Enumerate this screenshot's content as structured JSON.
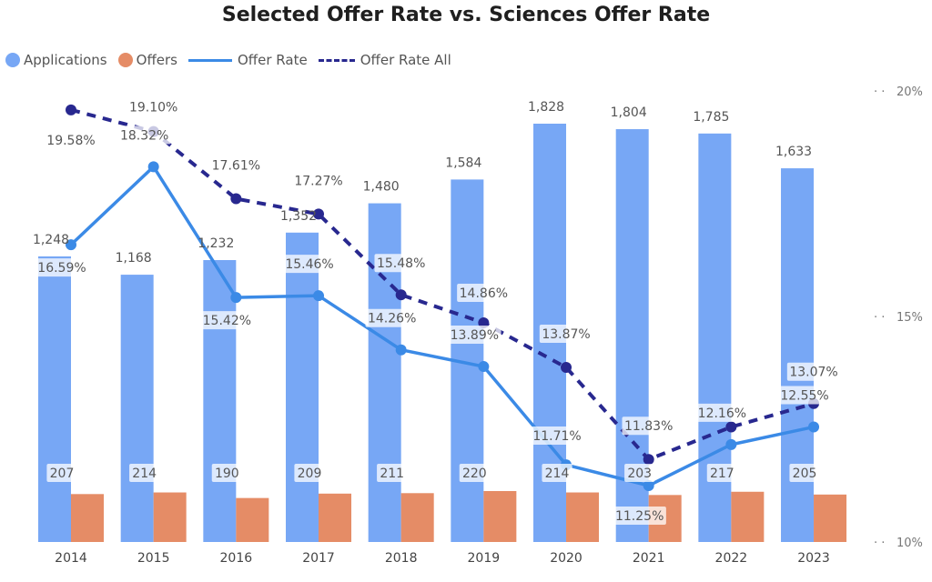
{
  "chart_data": {
    "type": "bar",
    "title": "Selected Offer Rate vs. Sciences Offer Rate",
    "categories": [
      "2014",
      "2015",
      "2016",
      "2017",
      "2018",
      "2019",
      "2020",
      "2021",
      "2022",
      "2023"
    ],
    "series": [
      {
        "name": "Applications",
        "kind": "bar",
        "color": "#77a7f5",
        "values": [
          1248,
          1168,
          1232,
          1352,
          1480,
          1584,
          1828,
          1804,
          1785,
          1633
        ],
        "labels": [
          "1,248",
          "1,168",
          "1,232",
          "1,352",
          "1,480",
          "1,584",
          "1,828",
          "1,804",
          "1,785",
          "1,633"
        ]
      },
      {
        "name": "Offers",
        "kind": "bar",
        "color": "#e58c66",
        "values": [
          207,
          214,
          190,
          209,
          211,
          220,
          214,
          203,
          217,
          205
        ],
        "labels": [
          "207",
          "214",
          "190",
          "209",
          "211",
          "220",
          "214",
          "203",
          "217",
          "205"
        ]
      },
      {
        "name": "Offer Rate",
        "kind": "line",
        "color": "#3b8ae6",
        "values": [
          16.59,
          18.32,
          15.42,
          15.46,
          14.26,
          13.89,
          11.71,
          11.25,
          12.16,
          12.55
        ],
        "labels": [
          "16.59%",
          "18.32%",
          "15.42%",
          "15.46%",
          "14.26%",
          "13.89%",
          "11.71%",
          "11.25%",
          "12.16%",
          "12.55%"
        ]
      },
      {
        "name": "Offer Rate All",
        "kind": "line",
        "dashed": true,
        "color": "#28288f",
        "values": [
          19.58,
          19.1,
          17.61,
          17.27,
          15.48,
          14.86,
          13.87,
          11.83,
          12.55,
          13.07
        ],
        "labels": [
          "19.58%",
          "19.10%",
          "17.61%",
          "17.27%",
          "15.48%",
          "14.86%",
          "13.87%",
          "11.83%",
          "",
          "13.07%"
        ]
      }
    ],
    "y_right": {
      "ticks": [
        "20%",
        "15%",
        "10%"
      ],
      "range": [
        10,
        20
      ]
    },
    "legend_position": "top-left"
  }
}
